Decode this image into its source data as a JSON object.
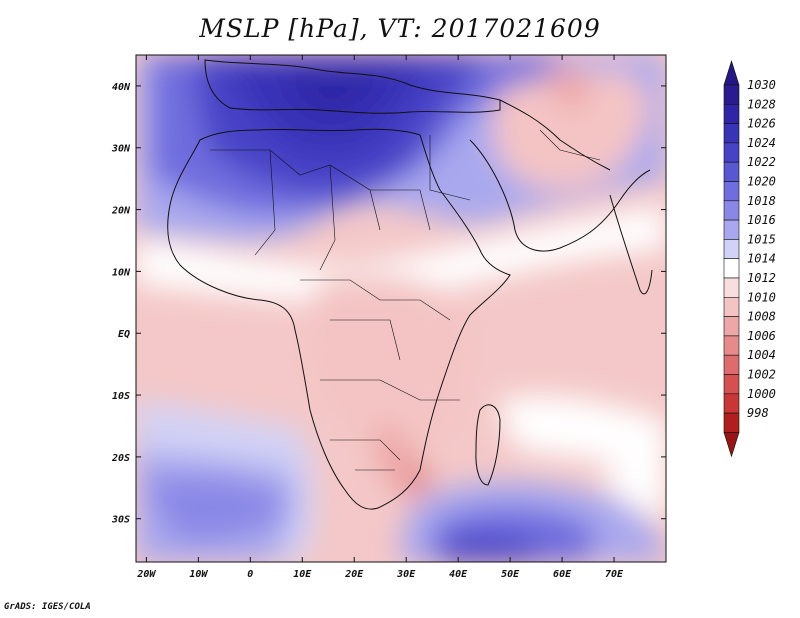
{
  "title": "MSLP [hPa], VT: 2017021609",
  "footer": "GrADS: IGES/COLA",
  "map": {
    "lon_range": [
      -22,
      80
    ],
    "lat_range": [
      -37,
      45
    ],
    "lat_ticks": [
      {
        "value": 40,
        "label": "40N"
      },
      {
        "value": 30,
        "label": "30N"
      },
      {
        "value": 20,
        "label": "20N"
      },
      {
        "value": 10,
        "label": "10N"
      },
      {
        "value": 0,
        "label": "EQ"
      },
      {
        "value": -10,
        "label": "10S"
      },
      {
        "value": -20,
        "label": "20S"
      },
      {
        "value": -30,
        "label": "30S"
      }
    ],
    "lon_ticks": [
      {
        "value": -20,
        "label": "20W"
      },
      {
        "value": -10,
        "label": "10W"
      },
      {
        "value": 0,
        "label": "0"
      },
      {
        "value": 10,
        "label": "10E"
      },
      {
        "value": 20,
        "label": "20E"
      },
      {
        "value": 30,
        "label": "30E"
      },
      {
        "value": 40,
        "label": "40E"
      },
      {
        "value": 50,
        "label": "50E"
      },
      {
        "value": 60,
        "label": "60E"
      },
      {
        "value": 70,
        "label": "70E"
      }
    ]
  },
  "colorbar": {
    "levels": [
      {
        "label": "1030",
        "color": "#2a1b8e"
      },
      {
        "label": "1028",
        "color": "#2f25a6"
      },
      {
        "label": "1026",
        "color": "#3933b8"
      },
      {
        "label": "1024",
        "color": "#4743c6"
      },
      {
        "label": "1022",
        "color": "#5a57d2"
      },
      {
        "label": "1020",
        "color": "#706dde"
      },
      {
        "label": "1018",
        "color": "#8a88e6"
      },
      {
        "label": "1016",
        "color": "#a9a8ee"
      },
      {
        "label": "1015",
        "color": "#d2d2f6"
      },
      {
        "label": "1014",
        "color": "#ffffff"
      },
      {
        "label": "1012",
        "color": "#f8dede"
      },
      {
        "label": "1010",
        "color": "#f4c4c4"
      },
      {
        "label": "1008",
        "color": "#eea7a7"
      },
      {
        "label": "1006",
        "color": "#e68a8a"
      },
      {
        "label": "1004",
        "color": "#de6c6c"
      },
      {
        "label": "1002",
        "color": "#d65050"
      },
      {
        "label": "1000",
        "color": "#c83636"
      },
      {
        "label": "998",
        "color": "#b01e1e"
      }
    ],
    "top_arrow_color": "#241685",
    "bottom_arrow_color": "#9a1414"
  }
}
